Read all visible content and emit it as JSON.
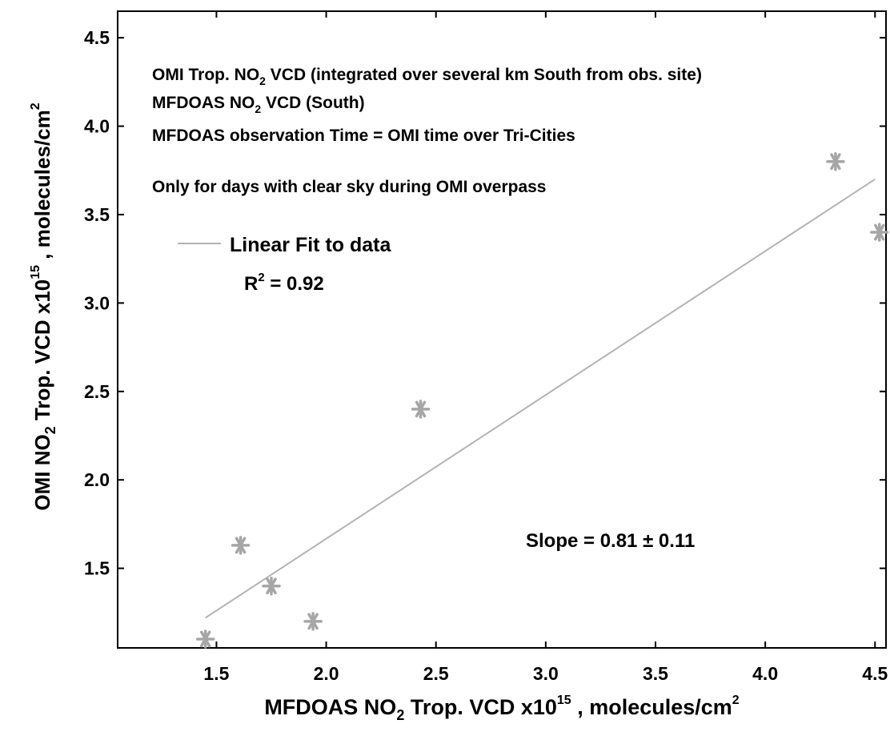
{
  "chart_data": {
    "type": "scatter",
    "xlim": [
      1.05,
      4.55
    ],
    "ylim": [
      1.05,
      4.65
    ],
    "x_ticks": [
      1.5,
      2.0,
      2.5,
      3.0,
      3.5,
      4.0,
      4.5
    ],
    "y_ticks": [
      1.5,
      2.0,
      2.5,
      3.0,
      3.5,
      4.0,
      4.5
    ],
    "x_tick_labels": [
      "1.5",
      "2.0",
      "2.5",
      "3.0",
      "3.5",
      "4.0",
      "4.5"
    ],
    "y_tick_labels": [
      "1.5",
      "2.0",
      "2.5",
      "3.0",
      "3.5",
      "4.0",
      "4.5"
    ],
    "xlabel": {
      "pre": "MFDOAS NO",
      "sub": "2",
      "mid": " Trop. VCD x10",
      "sup": "15",
      "post": " , molecules/cm",
      "sup2": "2"
    },
    "ylabel": {
      "pre": "OMI NO",
      "sub": "2",
      "mid": " Trop. VCD x10",
      "sup": "15",
      "post": " , molecules/cm",
      "sup2": "2"
    },
    "points": {
      "x": [
        1.45,
        1.61,
        1.75,
        1.94,
        2.43,
        4.32,
        4.52
      ],
      "y": [
        1.1,
        1.63,
        1.4,
        1.2,
        2.4,
        3.8,
        3.4
      ]
    },
    "fit_line": {
      "x": [
        1.45,
        4.5
      ],
      "y": [
        1.22,
        3.7
      ]
    },
    "grid": false,
    "colors": {
      "marker": "#a6a6a6",
      "fit": "#b3b3b3",
      "axis": "#000000"
    },
    "annotations": {
      "line1": {
        "pre": "OMI Trop. NO",
        "sub": "2",
        "post": " VCD (integrated over several km South from obs. site)"
      },
      "line2": {
        "pre": "MFDOAS NO",
        "sub": "2",
        "post": " VCD (South)"
      },
      "line3": "MFDOAS observation Time = OMI time over Tri-Cities",
      "line4": "Only for days with clear sky during OMI overpass",
      "legend_label": "Linear Fit to data",
      "r2": {
        "pre": "R",
        "sup": "2",
        "post": " = 0.92"
      },
      "slope": "Slope = 0.81 ± 0.11"
    }
  }
}
